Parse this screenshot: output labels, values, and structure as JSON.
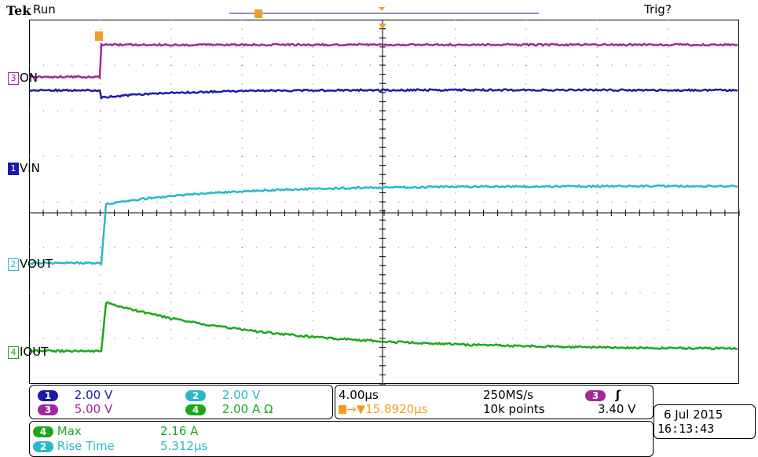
{
  "header": {
    "brand": "Tek",
    "status": "Run",
    "trigger_status": "Trig?",
    "trigger_marker": "T"
  },
  "channels": [
    {
      "id": "1",
      "label": "VIN",
      "color": "#1a1aa8"
    },
    {
      "id": "2",
      "label": "VOUT",
      "color": "#2ab8c8"
    },
    {
      "id": "3",
      "label": "ON",
      "color": "#a0289c"
    },
    {
      "id": "4",
      "label": "IOUT",
      "color": "#1aa81a"
    }
  ],
  "scales": {
    "ch1": {
      "badge": "1",
      "value": "2.00 V"
    },
    "ch2": {
      "badge": "2",
      "value": "2.00 V"
    },
    "ch3": {
      "badge": "3",
      "value": "5.00 V"
    },
    "ch4": {
      "badge": "4",
      "value": "2.00 A  Ω"
    }
  },
  "timebase": {
    "per_div": "4.00µs",
    "sample_rate": "250MS/s",
    "trigger_delay": "→▼15.8920µs",
    "record_length": "10k points",
    "trigger_channel": "3",
    "trigger_slope": "ʃ",
    "trigger_level": "3.40 V"
  },
  "datetime": {
    "date": "6 Jul  2015",
    "time": "16:13:43"
  },
  "measurements": [
    {
      "badge": "4",
      "name": "Max",
      "value": "2.16 A",
      "color": "#1aa81a"
    },
    {
      "badge": "2",
      "name": "Rise Time",
      "value": "5.312µs",
      "color": "#2ab8c8"
    }
  ],
  "colors": {
    "ch1": "#1a1aa8",
    "ch2": "#2ab8c8",
    "ch3": "#a0289c",
    "ch4": "#1aa81a",
    "trigger": "#f0a020",
    "graticule": "#000000"
  }
}
